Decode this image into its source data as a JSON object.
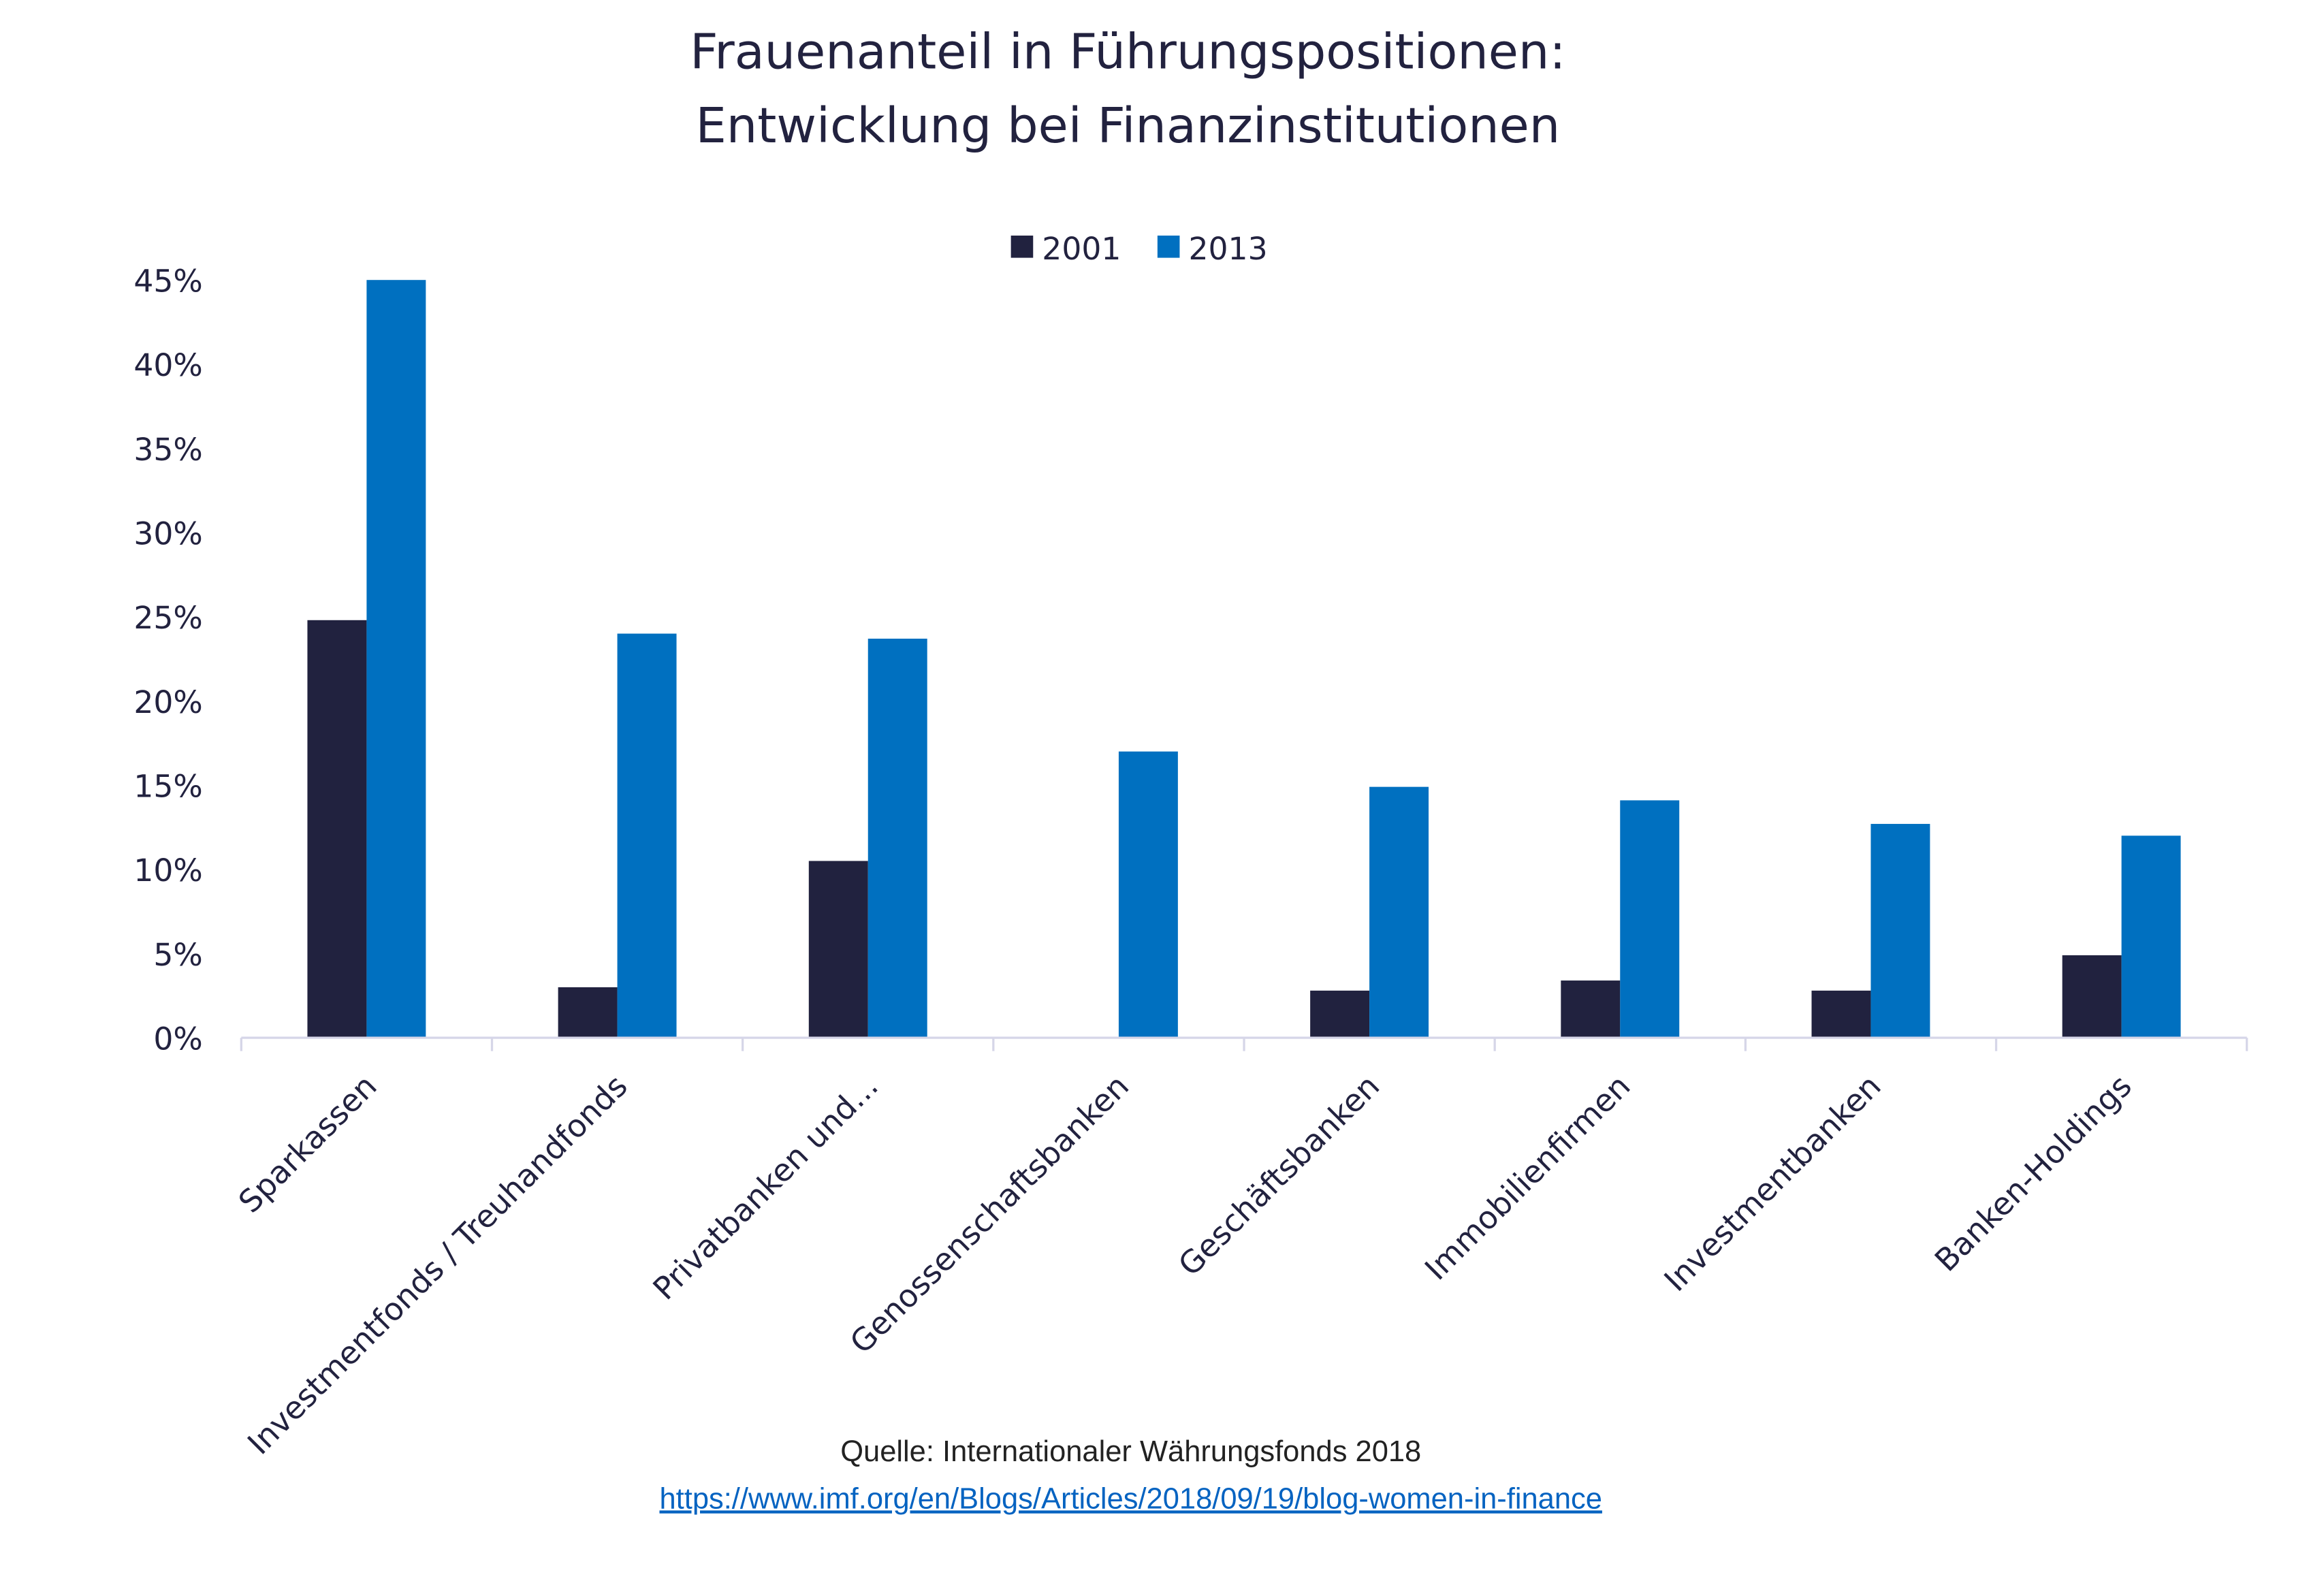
{
  "chart_data": {
    "type": "bar",
    "title": "Frauenanteil in Führungspositionen:",
    "subtitle": "Entwicklung bei Finanzinstitutionen",
    "categories": [
      "Sparkassen",
      "Investmentfonds / Treuhandfonds",
      "Privatbanken und...",
      "Genossenschaftsbanken",
      "Geschäftsbanken",
      "Immobilienfirmen",
      "Investmentbanken",
      "Banken-Holdings"
    ],
    "series": [
      {
        "name": "2001",
        "color": "#21223f",
        "values": [
          24.8,
          3.0,
          10.5,
          null,
          2.8,
          3.4,
          2.8,
          4.9
        ]
      },
      {
        "name": "2013",
        "color": "#0070c0",
        "values": [
          45.0,
          24.0,
          23.7,
          17.0,
          14.9,
          14.1,
          12.7,
          12.0
        ]
      }
    ],
    "ylim": [
      0,
      45
    ],
    "yticks": [
      "0%",
      "5%",
      "10%",
      "15%",
      "20%",
      "25%",
      "30%",
      "35%",
      "40%",
      "45%"
    ],
    "ytick_values": [
      0,
      5,
      10,
      15,
      20,
      25,
      30,
      35,
      40,
      45
    ],
    "grid": false,
    "legend_position": "top"
  },
  "source": {
    "text": "Quelle: Internationaler Währungsfonds 2018",
    "link": "https://www.imf.org/en/Blogs/Articles/2018/09/19/blog-women-in-finance"
  }
}
